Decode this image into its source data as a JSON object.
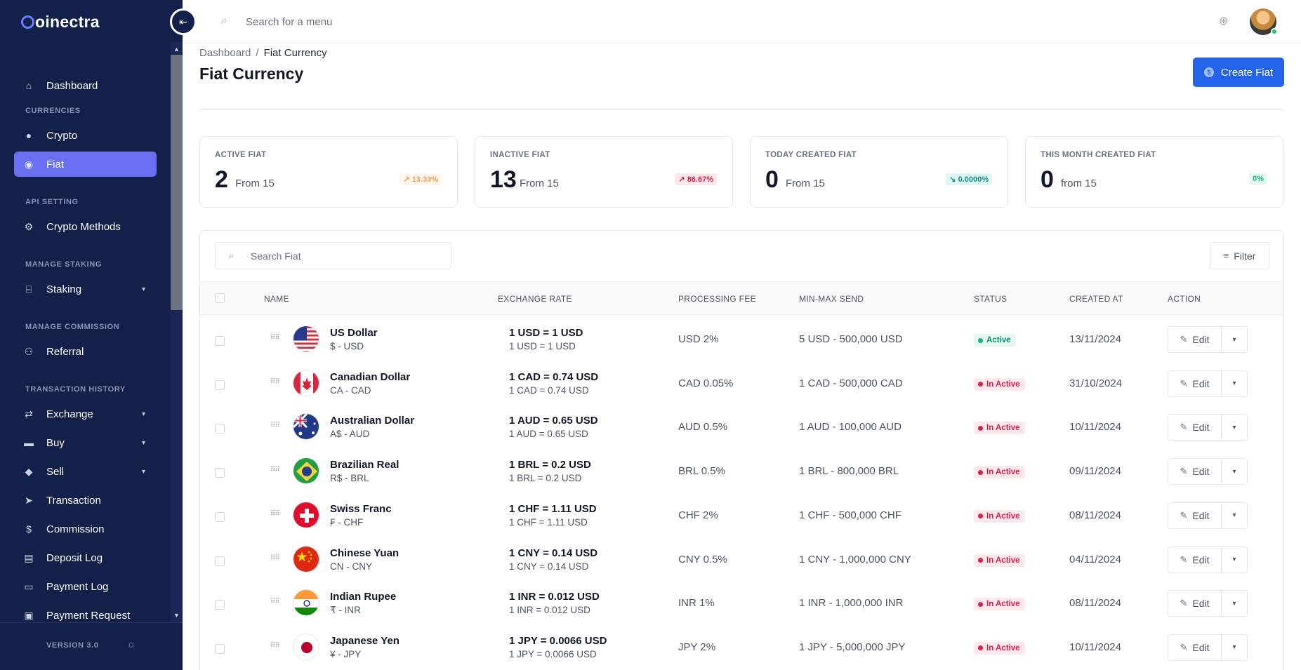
{
  "app": {
    "name": "Coinectra"
  },
  "topbar": {
    "search_placeholder": "Search for a menu"
  },
  "sidebar": {
    "items": [
      {
        "id": "dashboard",
        "label": "Dashboard",
        "icon": "home-icon"
      },
      {
        "id": "crypto",
        "label": "Crypto",
        "icon": "coin-icon",
        "section": "CURRENCIES"
      },
      {
        "id": "fiat",
        "label": "Fiat",
        "icon": "coin-icon",
        "active": true
      },
      {
        "id": "crypto-methods",
        "label": "Crypto Methods",
        "icon": "gears-icon",
        "section": "API SETTING"
      },
      {
        "id": "staking",
        "label": "Staking",
        "icon": "bank-icon",
        "section": "MANAGE STAKING",
        "expandable": true
      },
      {
        "id": "referral",
        "label": "Referral",
        "icon": "user-gear-icon",
        "section": "MANAGE COMMISSION"
      },
      {
        "id": "exchange",
        "label": "Exchange",
        "icon": "exchange-icon",
        "section": "TRANSACTION HISTORY",
        "expandable": true
      },
      {
        "id": "buy",
        "label": "Buy",
        "icon": "wallet-icon",
        "expandable": true
      },
      {
        "id": "sell",
        "label": "Sell",
        "icon": "tags-icon",
        "expandable": true
      },
      {
        "id": "transaction",
        "label": "Transaction",
        "icon": "send-icon"
      },
      {
        "id": "commission",
        "label": "Commission",
        "icon": "dollar-icon"
      },
      {
        "id": "deposit-log",
        "label": "Deposit Log",
        "icon": "receipt-icon"
      },
      {
        "id": "payment-log",
        "label": "Payment Log",
        "icon": "list-icon"
      },
      {
        "id": "payment-request",
        "label": "Payment Request",
        "icon": "money-icon"
      }
    ],
    "sections": [
      "CURRENCIES",
      "API SETTING",
      "MANAGE STAKING",
      "MANAGE COMMISSION",
      "TRANSACTION HISTORY"
    ],
    "version": "VERSION 3.0"
  },
  "header": {
    "breadcrumb": {
      "home": "Dashboard",
      "separator": "/",
      "current": "Fiat Currency"
    },
    "title": "Fiat Currency",
    "create_button": "Create Fiat"
  },
  "stats": [
    {
      "label": "ACTIVE FIAT",
      "value": "2",
      "sub": "From 15",
      "badge": "13.33%",
      "badge_color": "orange"
    },
    {
      "label": "INACTIVE FIAT",
      "value": "13",
      "sub": "From 15",
      "badge": "86.67%",
      "badge_color": "red"
    },
    {
      "label": "TODAY CREATED FIAT",
      "value": "0",
      "sub": "From 15",
      "badge": "0.0000%",
      "badge_color": "teal"
    },
    {
      "label": "THIS MONTH CREATED FIAT",
      "value": "0",
      "sub": "from 15",
      "badge": "0%",
      "badge_color": "green"
    }
  ],
  "table": {
    "search_placeholder": "Search Fiat",
    "filter_label": "Filter",
    "columns": [
      "NAME",
      "EXCHANGE RATE",
      "PROCESSING FEE",
      "MIN-MAX SEND",
      "STATUS",
      "CREATED AT",
      "ACTION"
    ],
    "edit_label": "Edit",
    "rows": [
      {
        "name": "US Dollar",
        "code": "$ - USD",
        "rate_main": "1 USD = 1 USD",
        "rate_sub": "1 USD = 1 USD",
        "fee": "USD 2%",
        "minmax": "5 USD - 500,000 USD",
        "status": "Active",
        "created": "13/11/2024",
        "flag": "us"
      },
      {
        "name": "Canadian Dollar",
        "code": "CA - CAD",
        "rate_main": "1 CAD = 0.74 USD",
        "rate_sub": "1 CAD = 0.74 USD",
        "fee": "CAD 0.05%",
        "minmax": "1 CAD - 500,000 CAD",
        "status": "In Active",
        "created": "31/10/2024",
        "flag": "ca"
      },
      {
        "name": "Australian Dollar",
        "code": "A$ - AUD",
        "rate_main": "1 AUD = 0.65 USD",
        "rate_sub": "1 AUD = 0.65 USD",
        "fee": "AUD 0.5%",
        "minmax": "1 AUD - 100,000 AUD",
        "status": "In Active",
        "created": "10/11/2024",
        "flag": "au"
      },
      {
        "name": "Brazilian Real",
        "code": "R$ - BRL",
        "rate_main": "1 BRL = 0.2 USD",
        "rate_sub": "1 BRL = 0.2 USD",
        "fee": "BRL 0.5%",
        "minmax": "1 BRL - 800,000 BRL",
        "status": "In Active",
        "created": "09/11/2024",
        "flag": "br"
      },
      {
        "name": "Swiss Franc",
        "code": "₣ - CHF",
        "rate_main": "1 CHF = 1.11 USD",
        "rate_sub": "1 CHF = 1.11 USD",
        "fee": "CHF 2%",
        "minmax": "1 CHF - 500,000 CHF",
        "status": "In Active",
        "created": "08/11/2024",
        "flag": "ch"
      },
      {
        "name": "Chinese Yuan",
        "code": "CN - CNY",
        "rate_main": "1 CNY = 0.14 USD",
        "rate_sub": "1 CNY = 0.14 USD",
        "fee": "CNY 0.5%",
        "minmax": "1 CNY - 1,000,000 CNY",
        "status": "In Active",
        "created": "04/11/2024",
        "flag": "cn"
      },
      {
        "name": "Indian Rupee",
        "code": "₹ - INR",
        "rate_main": "1 INR = 0.012 USD",
        "rate_sub": "1 INR = 0.012 USD",
        "fee": "INR 1%",
        "minmax": "1 INR - 1,000,000 INR",
        "status": "In Active",
        "created": "08/11/2024",
        "flag": "in"
      },
      {
        "name": "Japanese Yen",
        "code": "¥ - JPY",
        "rate_main": "1 JPY = 0.0066 USD",
        "rate_sub": "1 JPY = 0.0066 USD",
        "fee": "JPY 2%",
        "minmax": "1 JPY - 5,000,000 JPY",
        "status": "In Active",
        "created": "10/11/2024",
        "flag": "jp"
      }
    ]
  },
  "colors": {
    "sidebar_bg": "#13204a",
    "active_nav": "#6b6ff2",
    "primary": "#2563eb"
  }
}
